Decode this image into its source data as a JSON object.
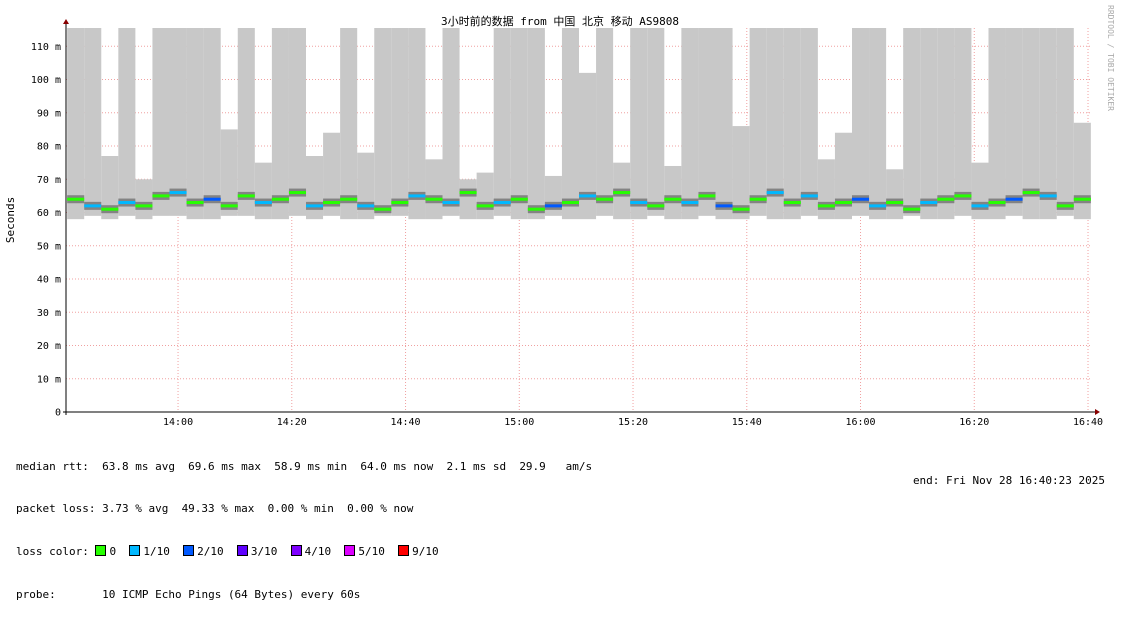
{
  "chart_data": {
    "type": "smoke",
    "title": "3小时前的数据 from 中国 北京 移动 AS9808",
    "y_label": "Seconds",
    "watermark": "RRDTOOL / TOBI OETIKER",
    "x": [
      822,
      825,
      828,
      831,
      834,
      837,
      840,
      843,
      846,
      849,
      852,
      855,
      858,
      861,
      864,
      867,
      870,
      873,
      876,
      879,
      882,
      885,
      888,
      891,
      894,
      897,
      900,
      903,
      906,
      909,
      912,
      915,
      918,
      921,
      924,
      927,
      930,
      933,
      936,
      939,
      942,
      945,
      948,
      951,
      954,
      957,
      960,
      963,
      966,
      969,
      972,
      975,
      978,
      981,
      984,
      987,
      990,
      993,
      996,
      999
    ],
    "median": [
      0.064,
      0.062,
      0.061,
      0.063,
      0.062,
      0.065,
      0.066,
      0.063,
      0.064,
      0.062,
      0.065,
      0.063,
      0.064,
      0.066,
      0.062,
      0.063,
      0.064,
      0.062,
      0.061,
      0.063,
      0.065,
      0.064,
      0.063,
      0.066,
      0.062,
      0.063,
      0.064,
      0.061,
      0.062,
      0.063,
      0.065,
      0.064,
      0.066,
      0.063,
      0.062,
      0.064,
      0.063,
      0.065,
      0.062,
      0.061,
      0.064,
      0.066,
      0.063,
      0.065,
      0.062,
      0.063,
      0.064,
      0.062,
      0.063,
      0.061,
      0.063,
      0.064,
      0.065,
      0.062,
      0.063,
      0.064,
      0.066,
      0.065,
      0.062,
      0.064
    ],
    "min": [
      0.058,
      0.059,
      0.058,
      0.059,
      0.058,
      0.059,
      0.059,
      0.058,
      0.058,
      0.059,
      0.059,
      0.058,
      0.058,
      0.059,
      0.058,
      0.059,
      0.058,
      0.058,
      0.059,
      0.059,
      0.058,
      0.058,
      0.059,
      0.058,
      0.058,
      0.059,
      0.058,
      0.058,
      0.059,
      0.058,
      0.058,
      0.059,
      0.058,
      0.058,
      0.059,
      0.058,
      0.058,
      0.059,
      0.058,
      0.058,
      0.059,
      0.058,
      0.058,
      0.059,
      0.058,
      0.058,
      0.059,
      0.058,
      0.058,
      0.059,
      0.058,
      0.058,
      0.059,
      0.058,
      0.058,
      0.059,
      0.058,
      0.058,
      0.059,
      0.058
    ],
    "max": [
      0.1155,
      0.1155,
      0.077,
      0.1155,
      0.07,
      0.1155,
      0.1155,
      0.1155,
      0.1155,
      0.085,
      0.1155,
      0.075,
      0.1155,
      0.1155,
      0.077,
      0.084,
      0.1155,
      0.078,
      0.1155,
      0.1155,
      0.1155,
      0.076,
      0.1155,
      0.07,
      0.072,
      0.1155,
      0.1155,
      0.1155,
      0.071,
      0.1155,
      0.102,
      0.1155,
      0.075,
      0.1155,
      0.1155,
      0.074,
      0.1155,
      0.1155,
      0.1155,
      0.086,
      0.1155,
      0.1155,
      0.1155,
      0.1155,
      0.076,
      0.084,
      0.1155,
      0.1155,
      0.073,
      0.1155,
      0.1155,
      0.1155,
      0.1155,
      0.075,
      0.1155,
      0.1155,
      0.1155,
      0.1155,
      0.1155,
      0.087
    ],
    "loss": [
      0,
      1,
      0,
      1,
      0,
      0,
      1,
      0,
      2,
      0,
      0,
      1,
      0,
      0,
      1,
      0,
      0,
      1,
      0,
      0,
      1,
      0,
      1,
      0,
      0,
      1,
      0,
      0,
      2,
      0,
      1,
      0,
      0,
      1,
      0,
      0,
      1,
      0,
      2,
      0,
      0,
      1,
      0,
      1,
      0,
      0,
      2,
      1,
      0,
      0,
      1,
      0,
      0,
      1,
      0,
      2,
      0,
      1,
      0,
      0
    ],
    "xlim": [
      820.3,
      1000.7
    ],
    "ylim": [
      0,
      0.1155
    ],
    "xticks": [
      {
        "value": 840,
        "label": "14:00"
      },
      {
        "value": 860,
        "label": "14:20"
      },
      {
        "value": 880,
        "label": "14:40"
      },
      {
        "value": 900,
        "label": "15:00"
      },
      {
        "value": 920,
        "label": "15:20"
      },
      {
        "value": 940,
        "label": "15:40"
      },
      {
        "value": 960,
        "label": "16:00"
      },
      {
        "value": 980,
        "label": "16:20"
      },
      {
        "value": 1000,
        "label": "16:40"
      }
    ],
    "yticks": [
      {
        "value": 0,
        "label": "0"
      },
      {
        "value": 0.01,
        "label": "10 m"
      },
      {
        "value": 0.02,
        "label": "20 m"
      },
      {
        "value": 0.03,
        "label": "30 m"
      },
      {
        "value": 0.04,
        "label": "40 m"
      },
      {
        "value": 0.05,
        "label": "50 m"
      },
      {
        "value": 0.06,
        "label": "60 m"
      },
      {
        "value": 0.07,
        "label": "70 m"
      },
      {
        "value": 0.08,
        "label": "80 m"
      },
      {
        "value": 0.09,
        "label": "90 m"
      },
      {
        "value": 0.1,
        "label": "100 m"
      },
      {
        "value": 0.11,
        "label": "110 m"
      }
    ],
    "grid": true,
    "smoke_color": "#c8c8c8",
    "stats": [
      "median rtt:  63.8 ms avg  69.6 ms max  58.9 ms min  64.0 ms now  2.1 ms sd  29.9   am/s",
      "packet loss: 3.73 % avg  49.33 % max  0.00 % min  0.00 % now"
    ],
    "loss_label": "loss color:",
    "loss_colors": [
      {
        "label": "0",
        "color": "#26ff00"
      },
      {
        "label": "1/10",
        "color": "#00b8ff"
      },
      {
        "label": "2/10",
        "color": "#0059ff"
      },
      {
        "label": "3/10",
        "color": "#5e00ff"
      },
      {
        "label": "4/10",
        "color": "#7e00ff"
      },
      {
        "label": "5/10",
        "color": "#dd00ff"
      },
      {
        "label": "9/10",
        "color": "#ff0000"
      }
    ],
    "probe_label": "probe:",
    "probe": "10 ICMP Echo Pings (64 Bytes) every 60s",
    "end": "end: Fri Nov 28 16:40:23 2025"
  }
}
